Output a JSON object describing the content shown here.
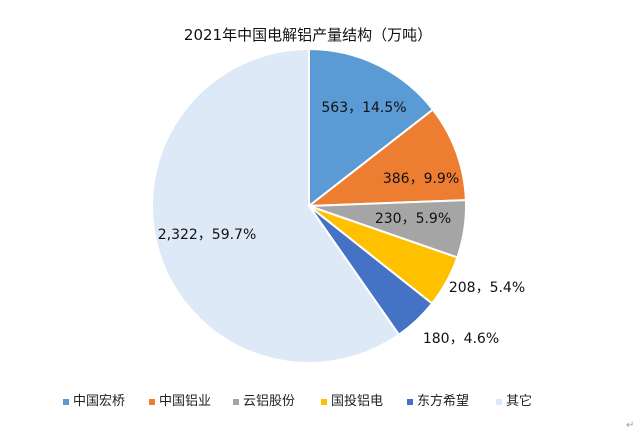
{
  "chart_data": {
    "type": "pie",
    "title": "2021年中国电解铝产量结构（万吨）",
    "categories": [
      "中国宏桥",
      "中国铝业",
      "云铝股份",
      "国投铝电",
      "东方希望",
      "其它"
    ],
    "values": [
      563,
      386,
      230,
      208,
      180,
      2322
    ],
    "data_labels": [
      "563，14.5%",
      "386，9.9%",
      "230，5.9%",
      "208，5.4%",
      "180，4.6%",
      "2,322，59.7%"
    ],
    "colors": [
      "#5b9bd5",
      "#ed7d31",
      "#a5a5a5",
      "#ffc000",
      "#4472c4",
      "#dde9f6"
    ],
    "legend_position": "bottom"
  },
  "return_mark": "↵"
}
